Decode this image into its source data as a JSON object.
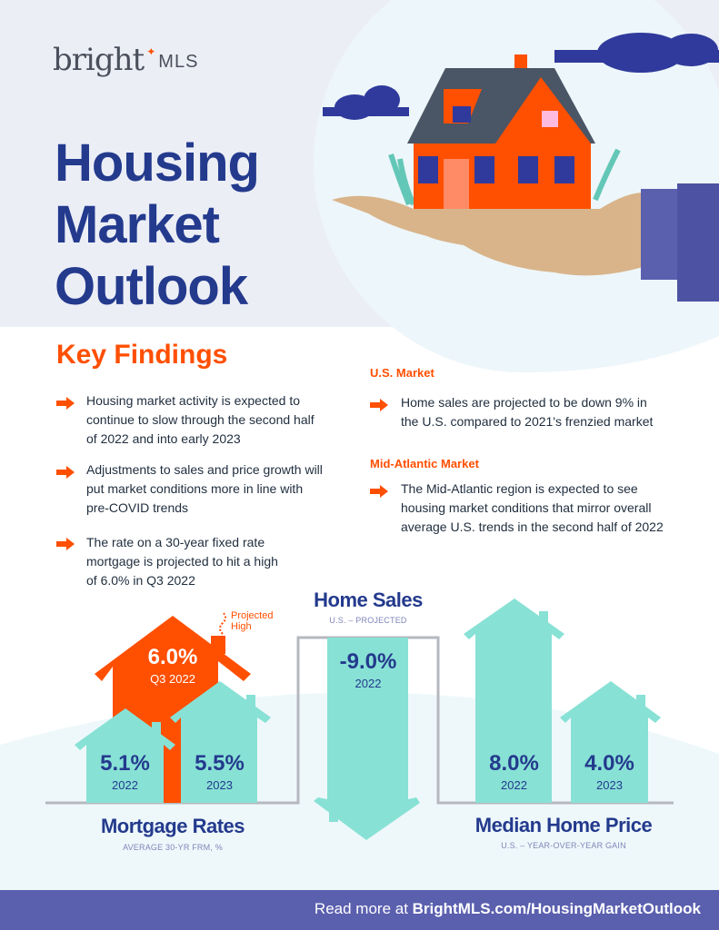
{
  "brand": {
    "logo_word": "bright",
    "logo_suffix": "MLS"
  },
  "title": [
    "Housing",
    "Market",
    "Outlook"
  ],
  "key_findings": {
    "heading": "Key Findings",
    "items": [
      [
        "Housing market activity is expected to",
        "continue to slow through the second half",
        "of 2022 and into early 2023"
      ],
      [
        "Adjustments to sales and price growth will",
        "put market conditions more in line with",
        "pre-COVID trends"
      ],
      [
        "The rate on a 30-year fixed rate",
        "mortgage is projected to hit a high",
        "of 6.0% in Q3 2022"
      ]
    ]
  },
  "us_market": {
    "heading": "U.S. Market",
    "text": [
      "Home sales are projected to be down 9% in",
      "the U.S. compared to 2021's frenzied market"
    ]
  },
  "mid_atlantic": {
    "heading": "Mid-Atlantic Market",
    "text": [
      "The Mid-Atlantic region is expected to see",
      "housing market conditions that mirror overall",
      "average U.S. trends in the second half of 2022"
    ]
  },
  "mortgage_rates": {
    "title": "Mortgage Rates",
    "subtitle": "AVERAGE 30-YR FRM, %",
    "annotation": [
      "Projected",
      "High"
    ],
    "items": [
      {
        "value": "6.0%",
        "label": "Q3 2022"
      },
      {
        "value": "5.1%",
        "label": "2022"
      },
      {
        "value": "5.5%",
        "label": "2023"
      }
    ]
  },
  "home_sales": {
    "title": "Home Sales",
    "subtitle": "U.S. – PROJECTED",
    "value": "-9.0%",
    "label": "2022"
  },
  "median_price": {
    "title": "Median Home Price",
    "subtitle": "U.S. – YEAR-OVER-YEAR GAIN",
    "items": [
      {
        "value": "8.0%",
        "label": "2022"
      },
      {
        "value": "4.0%",
        "label": "2023"
      }
    ]
  },
  "footer": {
    "prefix": "Read more at ",
    "link": "BrightMLS.com/HousingMarketOutlook"
  },
  "colors": {
    "navy": "#233a8d",
    "orange": "#ff4f00",
    "teal": "#88e1d5",
    "footer": "#5a5fae"
  }
}
